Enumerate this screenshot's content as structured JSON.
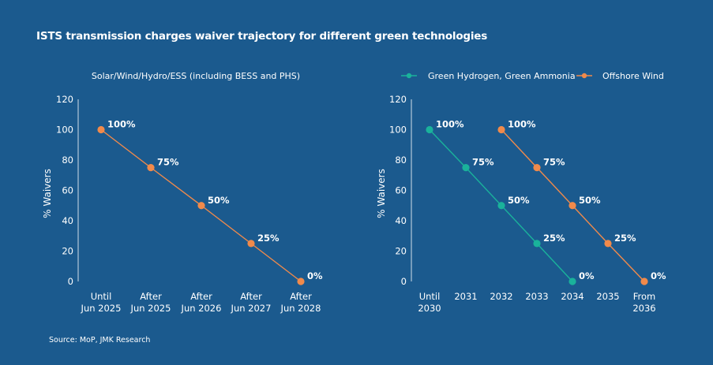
{
  "title": "ISTS transmission charges waiver trajectory for different green technologies",
  "source": "Source: MoP, JMK Research",
  "colors": {
    "background": "#1b5a8e",
    "orange": "#f08a4b",
    "teal": "#1ab29b",
    "text": "#ffffff"
  },
  "chart_data": [
    {
      "type": "line",
      "title": "Solar/Wind/Hydro/ESS (including BESS and PHS)",
      "ylabel": "% Waivers",
      "ylim": [
        0,
        120
      ],
      "yticks": [
        0,
        20,
        40,
        60,
        80,
        100,
        120
      ],
      "categories": [
        [
          "Until",
          "Jun 2025"
        ],
        [
          "After",
          "Jun 2025"
        ],
        [
          "After",
          "Jun 2026"
        ],
        [
          "After",
          "Jun 2027"
        ],
        [
          "After",
          "Jun 2028"
        ]
      ],
      "series": [
        {
          "name": "Solar/Wind/Hydro/ESS",
          "color": "#f08a4b",
          "values": [
            100,
            75,
            50,
            25,
            0
          ],
          "labels": [
            "100%",
            "75%",
            "50%",
            "25%",
            "0%"
          ]
        }
      ]
    },
    {
      "type": "line",
      "ylabel": "% Waivers",
      "ylim": [
        0,
        120
      ],
      "yticks": [
        0,
        20,
        40,
        60,
        80,
        100,
        120
      ],
      "categories": [
        [
          "Until",
          "2030"
        ],
        [
          "2031"
        ],
        [
          "2032"
        ],
        [
          "2033"
        ],
        [
          "2034"
        ],
        [
          "2035"
        ],
        [
          "From",
          "2036"
        ]
      ],
      "legend": [
        "Green Hydrogen, Green Ammonia",
        "Offshore Wind"
      ],
      "series": [
        {
          "name": "Green Hydrogen, Green Ammonia",
          "color": "#1ab29b",
          "values": [
            100,
            75,
            50,
            25,
            0,
            null,
            null
          ],
          "labels": [
            "100%",
            "75%",
            "50%",
            "25%",
            "0%",
            "",
            ""
          ]
        },
        {
          "name": "Offshore Wind",
          "color": "#f08a4b",
          "values": [
            null,
            null,
            100,
            75,
            50,
            25,
            0
          ],
          "labels": [
            "",
            "",
            "100%",
            "75%",
            "50%",
            "25%",
            "0%"
          ]
        }
      ]
    }
  ]
}
